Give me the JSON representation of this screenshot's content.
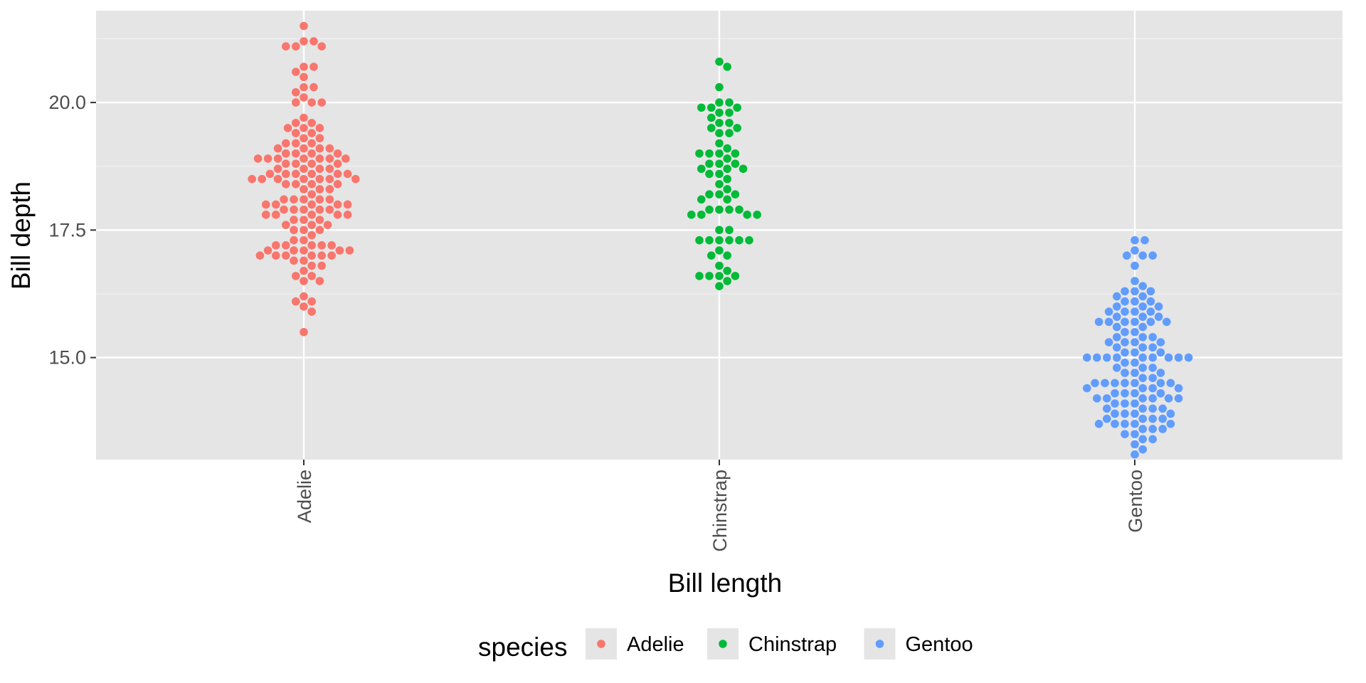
{
  "chart_data": {
    "type": "scatter",
    "subtype": "beeswarm",
    "title": "",
    "xlabel": "Bill length",
    "ylabel": "Bill depth",
    "categories": [
      "Adelie",
      "Chinstrap",
      "Gentoo"
    ],
    "ylim": [
      13.0,
      21.8
    ],
    "y_ticks": [
      15.0,
      17.5,
      20.0
    ],
    "y_tick_labels": [
      "15.0",
      "17.5",
      "20.0"
    ],
    "x_tick_orientation": "vertical",
    "grid": true,
    "panel_background": "#e5e5e5",
    "gridline_color": "#ffffff",
    "legend": {
      "title": "species",
      "position": "bottom",
      "key_background": "#e5e5e5",
      "entries": [
        "Adelie",
        "Chinstrap",
        "Gentoo"
      ]
    },
    "series": [
      {
        "name": "Adelie",
        "category": "Adelie",
        "color": "#f8766d",
        "values": [
          21.5,
          21.2,
          21.2,
          21.1,
          21.1,
          21.1,
          20.7,
          20.7,
          20.6,
          20.5,
          20.3,
          20.3,
          20.2,
          20.1,
          20.0,
          20.0,
          20.0,
          19.7,
          19.6,
          19.6,
          19.5,
          19.5,
          19.5,
          19.4,
          19.4,
          19.3,
          19.3,
          19.2,
          19.2,
          19.2,
          19.1,
          19.1,
          19.1,
          19.1,
          19.0,
          19.0,
          19.0,
          19.0,
          18.9,
          18.9,
          18.9,
          18.9,
          18.9,
          18.9,
          18.9,
          18.8,
          18.8,
          18.8,
          18.8,
          18.7,
          18.7,
          18.7,
          18.7,
          18.6,
          18.6,
          18.6,
          18.6,
          18.6,
          18.6,
          18.5,
          18.5,
          18.5,
          18.5,
          18.5,
          18.5,
          18.5,
          18.4,
          18.4,
          18.4,
          18.4,
          18.3,
          18.3,
          18.3,
          18.2,
          18.1,
          18.1,
          18.1,
          18.1,
          18.1,
          18.0,
          18.0,
          18.0,
          18.0,
          18.0,
          17.9,
          17.9,
          17.9,
          17.9,
          17.9,
          17.8,
          17.8,
          17.8,
          17.8,
          17.8,
          17.7,
          17.7,
          17.7,
          17.6,
          17.6,
          17.6,
          17.5,
          17.5,
          17.5,
          17.4,
          17.3,
          17.3,
          17.2,
          17.2,
          17.2,
          17.2,
          17.2,
          17.1,
          17.1,
          17.1,
          17.1,
          17.1,
          17.0,
          17.0,
          17.0,
          17.0,
          17.0,
          17.0,
          16.9,
          16.9,
          16.8,
          16.8,
          16.7,
          16.6,
          16.6,
          16.5,
          16.5,
          16.2,
          16.1,
          16.1,
          16.0,
          15.9,
          15.5
        ]
      },
      {
        "name": "Chinstrap",
        "category": "Chinstrap",
        "color": "#00ba38",
        "values": [
          20.8,
          20.7,
          20.3,
          20.0,
          20.0,
          19.9,
          19.9,
          19.9,
          19.8,
          19.8,
          19.7,
          19.6,
          19.6,
          19.5,
          19.5,
          19.4,
          19.4,
          19.2,
          19.1,
          19.0,
          19.0,
          19.0,
          19.0,
          18.9,
          18.8,
          18.8,
          18.8,
          18.7,
          18.7,
          18.7,
          18.6,
          18.6,
          18.5,
          18.4,
          18.3,
          18.2,
          18.2,
          18.2,
          18.1,
          18.1,
          17.9,
          17.9,
          17.9,
          17.9,
          17.8,
          17.8,
          17.8,
          17.8,
          17.5,
          17.5,
          17.3,
          17.3,
          17.3,
          17.3,
          17.3,
          17.3,
          17.1,
          17.0,
          17.0,
          16.8,
          16.7,
          16.6,
          16.6,
          16.6,
          16.6,
          16.5,
          16.4
        ]
      },
      {
        "name": "Gentoo",
        "category": "Gentoo",
        "color": "#619cff",
        "values": [
          17.3,
          17.3,
          17.1,
          17.0,
          17.0,
          17.0,
          16.8,
          16.5,
          16.4,
          16.3,
          16.3,
          16.3,
          16.2,
          16.2,
          16.1,
          16.1,
          16.1,
          16.0,
          16.0,
          16.0,
          15.9,
          15.9,
          15.9,
          15.9,
          15.8,
          15.8,
          15.8,
          15.7,
          15.7,
          15.7,
          15.7,
          15.7,
          15.7,
          15.6,
          15.6,
          15.5,
          15.5,
          15.4,
          15.4,
          15.4,
          15.3,
          15.3,
          15.3,
          15.3,
          15.2,
          15.2,
          15.2,
          15.1,
          15.1,
          15.1,
          15.0,
          15.0,
          15.0,
          15.0,
          15.0,
          15.0,
          15.0,
          15.0,
          15.0,
          14.9,
          14.9,
          14.8,
          14.8,
          14.8,
          14.7,
          14.7,
          14.7,
          14.6,
          14.6,
          14.5,
          14.5,
          14.5,
          14.5,
          14.5,
          14.5,
          14.5,
          14.4,
          14.4,
          14.4,
          14.4,
          14.3,
          14.3,
          14.3,
          14.3,
          14.2,
          14.2,
          14.2,
          14.2,
          14.2,
          14.2,
          14.1,
          14.1,
          14.1,
          14.0,
          14.0,
          14.0,
          14.0,
          13.9,
          13.9,
          13.9,
          13.9,
          13.8,
          13.8,
          13.8,
          13.8,
          13.7,
          13.7,
          13.7,
          13.7,
          13.7,
          13.6,
          13.6,
          13.6,
          13.5,
          13.5,
          13.4,
          13.4,
          13.3,
          13.2,
          13.1
        ]
      }
    ]
  }
}
